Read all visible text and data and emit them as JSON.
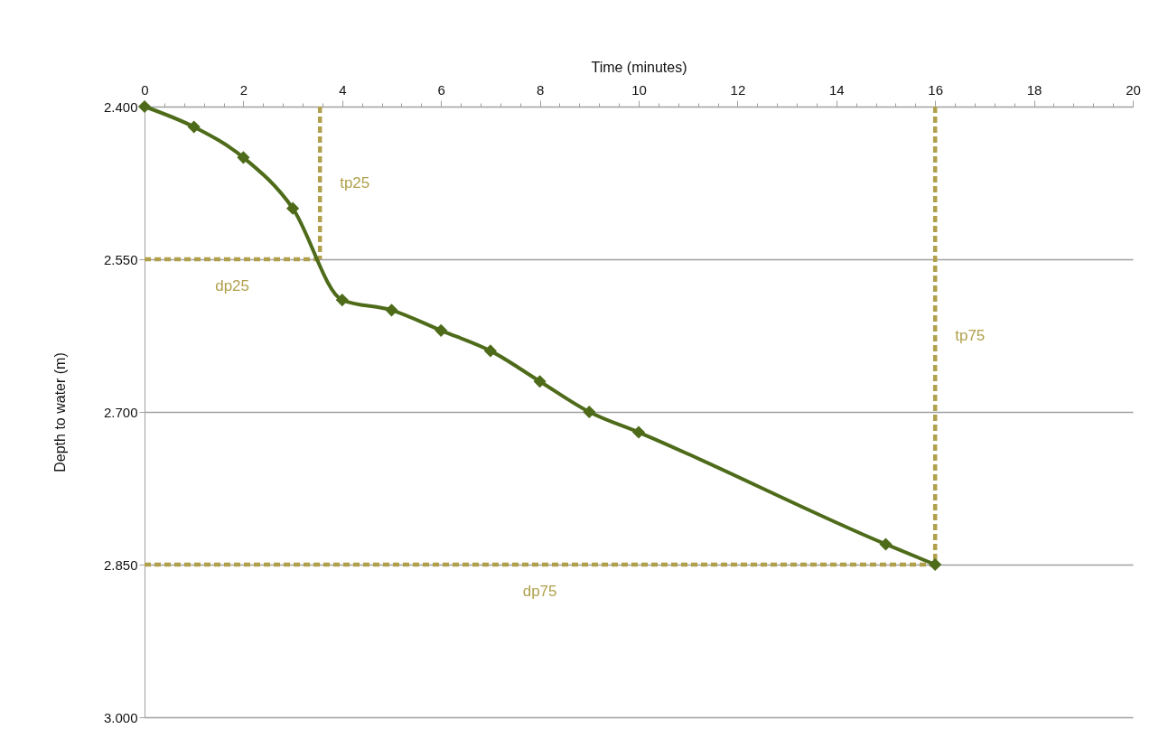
{
  "chart_data": {
    "type": "line",
    "xlabel": "Time (minutes)",
    "ylabel": "Depth to water (m)",
    "x": [
      0,
      1,
      2,
      3,
      4,
      5,
      6,
      7,
      8,
      9,
      10,
      15,
      16
    ],
    "series": [
      {
        "color": "#4e6b1a",
        "values": [
          2.4,
          2.42,
          2.45,
          2.5,
          2.59,
          2.6,
          2.62,
          2.64,
          2.67,
          2.7,
          2.72,
          2.83,
          2.85
        ],
        "marker": "diamond"
      },
      {
        "name": "tp25",
        "type": "line",
        "color": "#b0a04c",
        "line_style": "dashed",
        "marker": "none",
        "x": [
          3.55,
          3.55
        ],
        "values": [
          2.4,
          2.55
        ]
      },
      {
        "name": "dp25",
        "type": "line",
        "color": "#b0a04c",
        "line_style": "dashed",
        "marker": "none",
        "x": [
          0,
          3.55
        ],
        "values": [
          2.55,
          2.55
        ]
      },
      {
        "name": "tp75",
        "type": "line",
        "color": "#b0a04c",
        "line_style": "dashed",
        "marker": "none",
        "x": [
          16,
          16
        ],
        "values": [
          2.4,
          2.85
        ]
      },
      {
        "name": "dp75",
        "type": "line",
        "color": "#b0a04c",
        "line_style": "dashed",
        "marker": "none",
        "x": [
          0,
          16
        ],
        "values": [
          2.85,
          2.85
        ]
      }
    ],
    "xlim": [
      0,
      20
    ],
    "xticks": [
      0,
      {
        "value": 0.4,
        "label": null
      },
      {
        "value": 0.8,
        "label": null
      },
      {
        "value": 1.2,
        "label": null
      },
      {
        "value": 1.6,
        "label": null
      },
      2,
      {
        "value": 2.4,
        "label": null
      },
      {
        "value": 2.8,
        "label": null
      },
      {
        "value": 3.2,
        "label": null
      },
      {
        "value": 3.6,
        "label": null
      },
      4,
      {
        "value": 4.4,
        "label": null
      },
      {
        "value": 4.8,
        "label": null
      },
      {
        "value": 5.2,
        "label": null
      },
      {
        "value": 5.6,
        "label": null
      },
      6,
      {
        "value": 6.4,
        "label": null
      },
      {
        "value": 6.8,
        "label": null
      },
      {
        "value": 7.2,
        "label": null
      },
      {
        "value": 7.6,
        "label": null
      },
      8,
      {
        "value": 8.4,
        "label": null
      },
      {
        "value": 8.8,
        "label": null
      },
      {
        "value": 9.2,
        "label": null
      },
      {
        "value": 9.6,
        "label": null
      },
      10,
      {
        "value": 10.4,
        "label": null
      },
      {
        "value": 10.8,
        "label": null
      },
      {
        "value": 11.2,
        "label": null
      },
      {
        "value": 11.6,
        "label": null
      },
      12,
      {
        "value": 12.4,
        "label": null
      },
      {
        "value": 12.8,
        "label": null
      },
      {
        "value": 13.2,
        "label": null
      },
      {
        "value": 13.6,
        "label": null
      },
      14,
      {
        "value": 14.4,
        "label": null
      },
      {
        "value": 14.8,
        "label": null
      },
      {
        "value": 15.2,
        "label": null
      },
      {
        "value": 15.6,
        "label": null
      },
      16,
      {
        "value": 16.4,
        "label": null
      },
      {
        "value": 16.8,
        "label": null
      },
      {
        "value": 17.2,
        "label": null
      },
      {
        "value": 17.6,
        "label": null
      },
      18,
      {
        "value": 18.4,
        "label": null
      },
      {
        "value": 18.8,
        "label": null
      },
      {
        "value": 19.2,
        "label": null
      },
      {
        "value": 19.6,
        "label": null
      },
      20
    ],
    "ylim": [
      3.0,
      2.4
    ],
    "yticks": [
      {
        "value": 2.4,
        "label": "2.400"
      },
      {
        "value": 2.55,
        "label": "2.550"
      },
      {
        "value": 2.7,
        "label": "2.700"
      },
      {
        "value": 2.85,
        "label": "2.850"
      },
      {
        "value": 3.0,
        "label": "3.000"
      }
    ],
    "grid": "y"
  }
}
